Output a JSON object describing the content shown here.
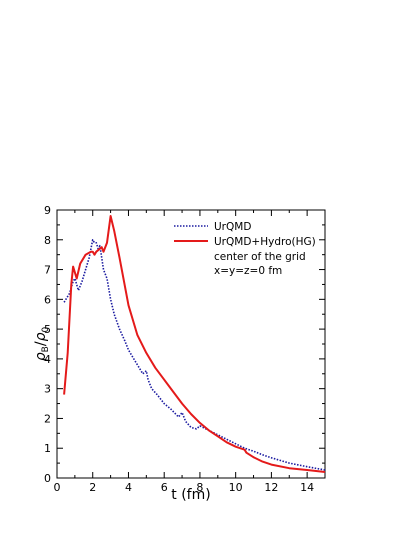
{
  "chart_data": {
    "type": "line",
    "xlabel": "t (fm)",
    "ylabel": "ρB/ρ0",
    "ylabel_parts": {
      "main": "ρ",
      "sub1": "B",
      "slash": "/",
      "main2": "ρ",
      "sub2": "0"
    },
    "xlim": [
      0,
      15
    ],
    "ylim": [
      0,
      9
    ],
    "x_ticks": [
      "0",
      "2",
      "4",
      "6",
      "8",
      "10",
      "12",
      "14"
    ],
    "y_ticks": [
      "0",
      "1",
      "2",
      "3",
      "4",
      "5",
      "6",
      "7",
      "8",
      "9"
    ],
    "grid": false,
    "legend_position": "top-right",
    "annotations": [
      "center of the grid",
      "x=y=z=0 fm"
    ],
    "series": [
      {
        "name": "UrQMD",
        "color": "#1a1aa0",
        "style": "dotted",
        "x": [
          0.4,
          0.7,
          0.9,
          1.0,
          1.2,
          1.4,
          1.6,
          1.8,
          2.0,
          2.1,
          2.2,
          2.3,
          2.4,
          2.5,
          2.6,
          2.8,
          3.0,
          3.2,
          3.5,
          3.8,
          4.0,
          4.3,
          4.6,
          4.8,
          5.0,
          5.1,
          5.3,
          5.6,
          6.0,
          6.4,
          6.8,
          7.0,
          7.2,
          7.5,
          7.8,
          8.0,
          8.5,
          9.0,
          9.5,
          10.0,
          10.5,
          11.0,
          11.5,
          12.0,
          13.0,
          14.0,
          15.0
        ],
        "y": [
          5.9,
          6.2,
          6.6,
          6.7,
          6.3,
          6.6,
          7.0,
          7.4,
          8.0,
          7.9,
          7.9,
          7.7,
          7.8,
          7.4,
          7.0,
          6.7,
          6.0,
          5.5,
          5.0,
          4.6,
          4.3,
          4.0,
          3.7,
          3.5,
          3.6,
          3.3,
          3.0,
          2.8,
          2.5,
          2.3,
          2.05,
          2.2,
          1.9,
          1.7,
          1.65,
          1.75,
          1.6,
          1.45,
          1.3,
          1.15,
          1.0,
          0.9,
          0.78,
          0.68,
          0.5,
          0.38,
          0.27
        ]
      },
      {
        "name": "UrQMD+Hydro(HG)",
        "color": "#e41a1a",
        "style": "solid",
        "x": [
          0.4,
          0.6,
          0.8,
          0.9,
          1.1,
          1.3,
          1.6,
          1.9,
          2.0,
          2.1,
          2.2,
          2.4,
          2.5,
          2.6,
          2.8,
          3.0,
          3.2,
          3.5,
          4.0,
          4.5,
          5.0,
          5.5,
          6.0,
          6.5,
          7.0,
          7.5,
          8.0,
          8.5,
          9.0,
          9.5,
          10.0,
          10.5,
          10.6,
          11.0,
          11.5,
          12.0,
          13.0,
          14.0,
          15.0
        ],
        "y": [
          2.8,
          4.2,
          6.5,
          7.1,
          6.7,
          7.2,
          7.5,
          7.6,
          7.6,
          7.5,
          7.6,
          7.7,
          7.75,
          7.6,
          7.9,
          8.8,
          8.3,
          7.4,
          5.8,
          4.8,
          4.2,
          3.7,
          3.3,
          2.9,
          2.5,
          2.15,
          1.85,
          1.6,
          1.4,
          1.2,
          1.05,
          0.95,
          0.85,
          0.7,
          0.55,
          0.45,
          0.33,
          0.27,
          0.2
        ]
      }
    ]
  }
}
